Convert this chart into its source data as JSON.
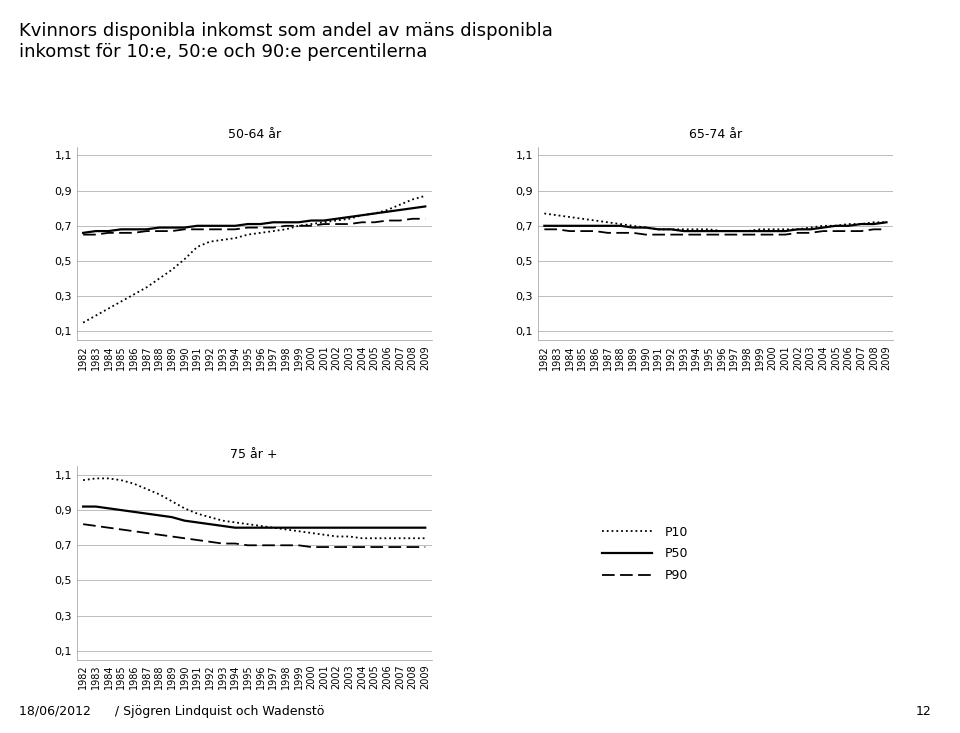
{
  "title": "Kvinnors disponibla inkomst som andel av mäns disponibla\ninkomst för 10:e, 50:e och 90:e percentilerna",
  "footer": "18/06/2012      / Sjögren Lindquist och Wadenstö",
  "page_number": "12",
  "years": [
    1982,
    1983,
    1984,
    1985,
    1986,
    1987,
    1988,
    1989,
    1990,
    1991,
    1992,
    1993,
    1994,
    1995,
    1996,
    1997,
    1998,
    1999,
    2000,
    2001,
    2002,
    2003,
    2004,
    2005,
    2006,
    2007,
    2008,
    2009
  ],
  "subplot1_title": "50-64 år",
  "subplot2_title": "65-74 år",
  "subplot3_title": "75 år +",
  "p10_1": [
    0.15,
    0.19,
    0.23,
    0.27,
    0.31,
    0.35,
    0.4,
    0.45,
    0.51,
    0.58,
    0.61,
    0.62,
    0.63,
    0.65,
    0.66,
    0.67,
    0.68,
    0.7,
    0.71,
    0.72,
    0.73,
    0.74,
    0.76,
    0.77,
    0.79,
    0.82,
    0.85,
    0.87
  ],
  "p50_1": [
    0.66,
    0.67,
    0.67,
    0.68,
    0.68,
    0.68,
    0.69,
    0.69,
    0.69,
    0.7,
    0.7,
    0.7,
    0.7,
    0.71,
    0.71,
    0.72,
    0.72,
    0.72,
    0.73,
    0.73,
    0.74,
    0.75,
    0.76,
    0.77,
    0.78,
    0.79,
    0.8,
    0.81
  ],
  "p90_1": [
    0.65,
    0.65,
    0.66,
    0.66,
    0.66,
    0.67,
    0.67,
    0.67,
    0.68,
    0.68,
    0.68,
    0.68,
    0.68,
    0.69,
    0.69,
    0.69,
    0.7,
    0.7,
    0.7,
    0.71,
    0.71,
    0.71,
    0.72,
    0.72,
    0.73,
    0.73,
    0.74,
    0.74
  ],
  "p10_2": [
    0.77,
    0.76,
    0.75,
    0.74,
    0.73,
    0.72,
    0.71,
    0.7,
    0.69,
    0.68,
    0.68,
    0.68,
    0.68,
    0.68,
    0.67,
    0.67,
    0.67,
    0.68,
    0.68,
    0.68,
    0.68,
    0.69,
    0.7,
    0.7,
    0.71,
    0.71,
    0.72,
    0.72
  ],
  "p50_2": [
    0.7,
    0.7,
    0.7,
    0.7,
    0.7,
    0.7,
    0.7,
    0.69,
    0.69,
    0.68,
    0.68,
    0.67,
    0.67,
    0.67,
    0.67,
    0.67,
    0.67,
    0.67,
    0.67,
    0.67,
    0.68,
    0.68,
    0.69,
    0.7,
    0.7,
    0.71,
    0.71,
    0.72
  ],
  "p90_2": [
    0.68,
    0.68,
    0.67,
    0.67,
    0.67,
    0.66,
    0.66,
    0.66,
    0.65,
    0.65,
    0.65,
    0.65,
    0.65,
    0.65,
    0.65,
    0.65,
    0.65,
    0.65,
    0.65,
    0.65,
    0.66,
    0.66,
    0.67,
    0.67,
    0.67,
    0.67,
    0.68,
    0.68
  ],
  "p10_3": [
    1.07,
    1.08,
    1.08,
    1.07,
    1.05,
    1.02,
    0.99,
    0.95,
    0.91,
    0.88,
    0.86,
    0.84,
    0.83,
    0.82,
    0.81,
    0.8,
    0.79,
    0.78,
    0.77,
    0.76,
    0.75,
    0.75,
    0.74,
    0.74,
    0.74,
    0.74,
    0.74,
    0.74
  ],
  "p50_3": [
    0.92,
    0.92,
    0.91,
    0.9,
    0.89,
    0.88,
    0.87,
    0.86,
    0.84,
    0.83,
    0.82,
    0.81,
    0.8,
    0.8,
    0.8,
    0.8,
    0.8,
    0.8,
    0.8,
    0.8,
    0.8,
    0.8,
    0.8,
    0.8,
    0.8,
    0.8,
    0.8,
    0.8
  ],
  "p90_3": [
    0.82,
    0.81,
    0.8,
    0.79,
    0.78,
    0.77,
    0.76,
    0.75,
    0.74,
    0.73,
    0.72,
    0.71,
    0.71,
    0.7,
    0.7,
    0.7,
    0.7,
    0.7,
    0.69,
    0.69,
    0.69,
    0.69,
    0.69,
    0.69,
    0.69,
    0.69,
    0.69,
    0.69
  ],
  "yticks": [
    0.1,
    0.3,
    0.5,
    0.7,
    0.9,
    1.1
  ],
  "ylim": [
    0.05,
    1.15
  ],
  "background_color": "#ffffff",
  "line_color": "#000000",
  "grid_color": "#bbbbbb",
  "title_fontsize": 13,
  "subtitle_label_fontsize": 9,
  "tick_fontsize": 7,
  "ytick_fontsize": 8
}
